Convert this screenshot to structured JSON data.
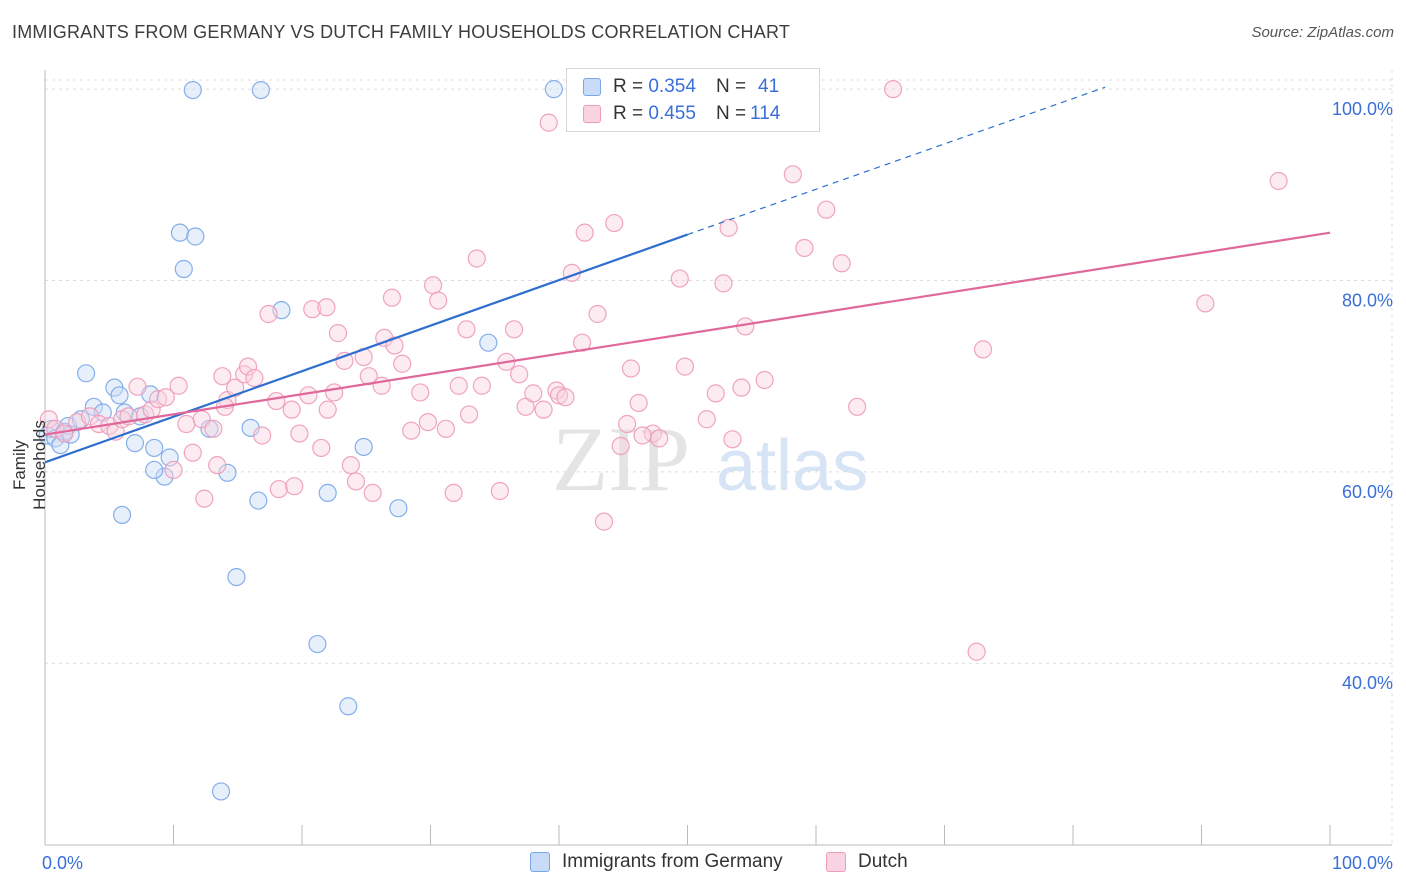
{
  "header": {
    "title": "IMMIGRANTS FROM GERMANY VS DUTCH FAMILY HOUSEHOLDS CORRELATION CHART",
    "source": "Source: ZipAtlas.com"
  },
  "watermark": {
    "zip": "ZIP",
    "atlas": "atlas"
  },
  "legend_top": [
    {
      "r_label": "R = ",
      "r_value": "0.354",
      "n_label": "N = ",
      "n_value": "41"
    },
    {
      "r_label": "R = ",
      "r_value": "0.455",
      "n_label": "N = ",
      "n_value": "114"
    }
  ],
  "colors": {
    "blue": "#7aa6e8",
    "blue_fill": "#c9dcf7",
    "blue_line": "#2e6fcf",
    "pink": "#ee9ab8",
    "pink_fill": "#f8d3e1",
    "pink_line": "#e0689a",
    "tick_text": "#3a6fd8",
    "grid": "#dcdcdc"
  },
  "chart_data": {
    "type": "scatter",
    "title": "IMMIGRANTS FROM GERMANY VS DUTCH FAMILY HOUSEHOLDS CORRELATION CHART",
    "xlabel": "",
    "ylabel": "Family Households",
    "xlim": [
      0,
      100
    ],
    "ylim": [
      21,
      102
    ],
    "x_tick_labels": [
      "0.0%",
      "100.0%"
    ],
    "y_ticks": [
      40,
      60,
      80,
      100
    ],
    "y_tick_labels": [
      "40.0%",
      "60.0%",
      "80.0%",
      "100.0%"
    ],
    "grid": true,
    "legend": "top-center",
    "series": [
      {
        "name": "Immigrants from Germany",
        "color": "blue",
        "r": 0.354,
        "n": 41,
        "trend": {
          "x0": 0,
          "y0": 61.0,
          "x1": 50,
          "y1": 84.8,
          "dash_to_x": 82.5,
          "dash_to_y": 100.2
        },
        "points": [
          [
            0.2,
            63.8
          ],
          [
            0.5,
            64.5
          ],
          [
            0.8,
            63.5
          ],
          [
            1.2,
            62.8
          ],
          [
            1.5,
            64.2
          ],
          [
            1.8,
            64.8
          ],
          [
            2.0,
            63.9
          ],
          [
            2.8,
            65.5
          ],
          [
            3.2,
            70.3
          ],
          [
            3.8,
            66.8
          ],
          [
            4.5,
            66.2
          ],
          [
            5.4,
            68.8
          ],
          [
            5.8,
            68.0
          ],
          [
            6.2,
            66.2
          ],
          [
            7.0,
            63.0
          ],
          [
            7.4,
            65.8
          ],
          [
            8.2,
            68.1
          ],
          [
            8.5,
            62.5
          ],
          [
            9.3,
            59.5
          ],
          [
            9.7,
            61.5
          ],
          [
            10.5,
            85.0
          ],
          [
            10.8,
            81.2
          ],
          [
            11.7,
            84.6
          ],
          [
            11.5,
            99.9
          ],
          [
            12.8,
            64.5
          ],
          [
            14.2,
            59.9
          ],
          [
            14.9,
            49.0
          ],
          [
            16.0,
            64.6
          ],
          [
            16.6,
            57.0
          ],
          [
            16.8,
            99.9
          ],
          [
            18.4,
            76.9
          ],
          [
            21.2,
            42.0
          ],
          [
            22.0,
            57.8
          ],
          [
            23.6,
            35.5
          ],
          [
            24.8,
            62.6
          ],
          [
            27.5,
            56.2
          ],
          [
            34.5,
            73.5
          ],
          [
            39.6,
            100.0
          ],
          [
            13.7,
            26.6
          ],
          [
            8.5,
            60.2
          ],
          [
            6.0,
            55.5
          ]
        ]
      },
      {
        "name": "Dutch",
        "color": "pink",
        "r": 0.455,
        "n": 114,
        "trend": {
          "x0": 0,
          "y0": 63.9,
          "x1": 100,
          "y1": 85.0
        },
        "points": [
          [
            0.3,
            65.5
          ],
          [
            0.8,
            64.5
          ],
          [
            1.5,
            64.0
          ],
          [
            2.5,
            65.2
          ],
          [
            3.5,
            65.8
          ],
          [
            4.2,
            65.0
          ],
          [
            5.0,
            64.8
          ],
          [
            5.5,
            64.2
          ],
          [
            6.0,
            65.5
          ],
          [
            6.5,
            65.8
          ],
          [
            7.2,
            68.9
          ],
          [
            7.8,
            66.0
          ],
          [
            8.3,
            66.5
          ],
          [
            8.8,
            67.6
          ],
          [
            9.4,
            67.8
          ],
          [
            10.0,
            60.2
          ],
          [
            10.4,
            69.0
          ],
          [
            11.0,
            65.0
          ],
          [
            11.5,
            62.0
          ],
          [
            12.2,
            65.5
          ],
          [
            12.4,
            57.2
          ],
          [
            13.1,
            64.5
          ],
          [
            13.4,
            60.7
          ],
          [
            13.8,
            70.0
          ],
          [
            14.2,
            67.5
          ],
          [
            14.8,
            68.8
          ],
          [
            15.5,
            70.2
          ],
          [
            15.8,
            71.0
          ],
          [
            16.3,
            69.8
          ],
          [
            16.9,
            63.8
          ],
          [
            17.4,
            76.5
          ],
          [
            18.0,
            67.4
          ],
          [
            18.2,
            58.2
          ],
          [
            19.2,
            66.5
          ],
          [
            19.4,
            58.5
          ],
          [
            19.8,
            64.0
          ],
          [
            20.5,
            68.0
          ],
          [
            20.8,
            77.0
          ],
          [
            21.5,
            62.5
          ],
          [
            21.9,
            77.2
          ],
          [
            22.5,
            68.3
          ],
          [
            22.8,
            74.5
          ],
          [
            23.3,
            71.6
          ],
          [
            23.8,
            60.7
          ],
          [
            24.2,
            59.0
          ],
          [
            24.8,
            72.0
          ],
          [
            25.2,
            70.0
          ],
          [
            25.5,
            57.8
          ],
          [
            26.2,
            69.0
          ],
          [
            26.4,
            74.0
          ],
          [
            27.0,
            78.2
          ],
          [
            27.2,
            73.2
          ],
          [
            27.8,
            71.3
          ],
          [
            28.5,
            64.3
          ],
          [
            29.2,
            68.3
          ],
          [
            29.8,
            65.2
          ],
          [
            30.2,
            79.5
          ],
          [
            30.6,
            77.9
          ],
          [
            31.2,
            64.5
          ],
          [
            31.8,
            57.8
          ],
          [
            32.2,
            69.0
          ],
          [
            32.8,
            74.9
          ],
          [
            33.6,
            82.3
          ],
          [
            34.0,
            69.0
          ],
          [
            35.4,
            58.0
          ],
          [
            35.9,
            71.5
          ],
          [
            36.5,
            74.9
          ],
          [
            36.9,
            70.2
          ],
          [
            37.4,
            66.8
          ],
          [
            38.0,
            68.2
          ],
          [
            38.8,
            66.5
          ],
          [
            39.2,
            96.5
          ],
          [
            39.8,
            68.5
          ],
          [
            40.0,
            68.0
          ],
          [
            40.5,
            67.8
          ],
          [
            41.0,
            80.8
          ],
          [
            41.8,
            73.5
          ],
          [
            42.0,
            85.0
          ],
          [
            43.0,
            76.5
          ],
          [
            43.5,
            54.8
          ],
          [
            44.3,
            86.0
          ],
          [
            44.8,
            62.7
          ],
          [
            45.3,
            65.0
          ],
          [
            45.6,
            70.8
          ],
          [
            46.2,
            67.2
          ],
          [
            47.3,
            64.0
          ],
          [
            47.8,
            63.5
          ],
          [
            48.5,
            100.0
          ],
          [
            49.4,
            80.2
          ],
          [
            49.8,
            71.0
          ],
          [
            51.5,
            65.5
          ],
          [
            52.2,
            68.2
          ],
          [
            52.8,
            79.7
          ],
          [
            53.2,
            85.5
          ],
          [
            53.5,
            63.4
          ],
          [
            54.2,
            68.8
          ],
          [
            54.5,
            75.2
          ],
          [
            56.0,
            69.6
          ],
          [
            58.2,
            91.1
          ],
          [
            59.1,
            83.4
          ],
          [
            60.8,
            87.4
          ],
          [
            62.0,
            81.8
          ],
          [
            63.2,
            66.8
          ],
          [
            66.0,
            100.0
          ],
          [
            72.5,
            41.2
          ],
          [
            73.0,
            72.8
          ],
          [
            90.3,
            77.6
          ],
          [
            96.0,
            90.4
          ],
          [
            46.5,
            63.8
          ],
          [
            33.0,
            66.0
          ],
          [
            22.0,
            66.5
          ],
          [
            14.0,
            66.8
          ]
        ]
      }
    ]
  },
  "legend_bottom": [
    {
      "label": "Immigrants from Germany"
    },
    {
      "label": "Dutch"
    }
  ]
}
